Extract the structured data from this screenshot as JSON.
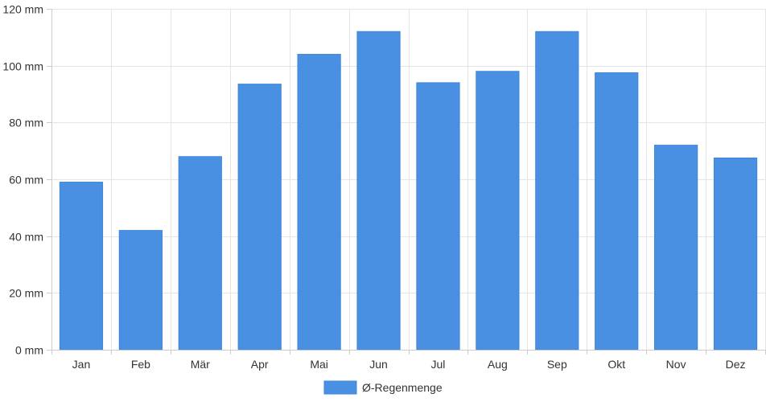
{
  "chart_data": {
    "type": "bar",
    "categories": [
      "Jan",
      "Feb",
      "Mär",
      "Apr",
      "Mai",
      "Jun",
      "Jul",
      "Aug",
      "Sep",
      "Okt",
      "Nov",
      "Dez"
    ],
    "series": [
      {
        "name": "Ø-Regenmenge",
        "color": "#4a90e2",
        "values": [
          59,
          42,
          68,
          93.5,
          104,
          112,
          94,
          98,
          112,
          97.5,
          72,
          67.5
        ]
      }
    ],
    "y_unit": "mm",
    "ylim": [
      0,
      120
    ],
    "y_ticks": [
      0,
      20,
      40,
      60,
      80,
      100,
      120
    ],
    "y_tick_labels": [
      "0 mm",
      "20 mm",
      "40 mm",
      "60 mm",
      "80 mm",
      "100 mm",
      "120 mm"
    ],
    "grid": true,
    "legend_position": "bottom-center"
  }
}
